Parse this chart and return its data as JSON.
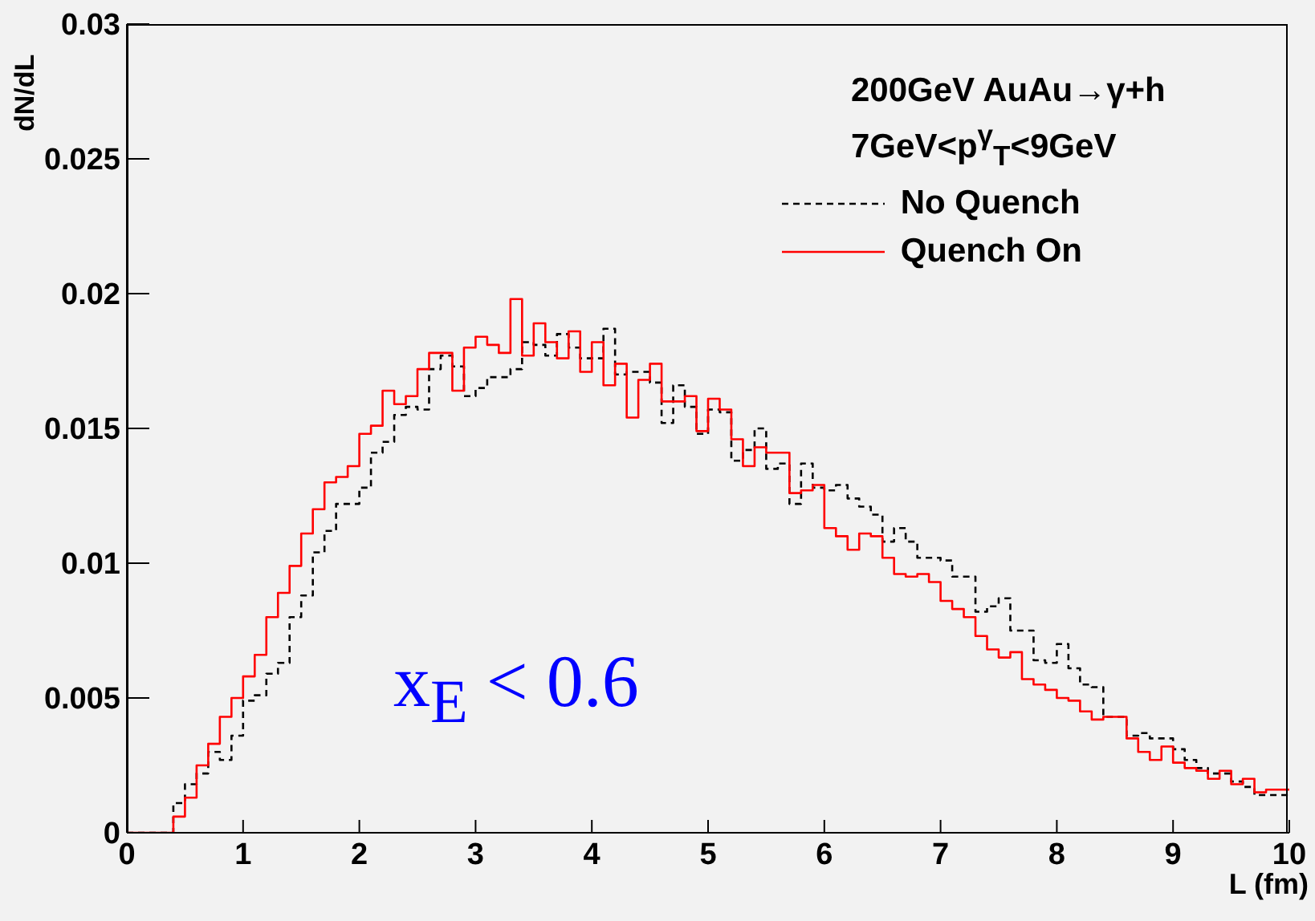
{
  "chart_data": {
    "type": "histogram",
    "xlabel": "L (fm)",
    "ylabel": "dN/dL",
    "annotations": [
      "200GeV AuAu→γ+h",
      "7GeV<p$^{γ}$$_{T}$<9GeV",
      "x$_{E}$ < 0.6"
    ],
    "bins": [
      0,
      0.1,
      0.2,
      0.3,
      0.4,
      0.5,
      0.6,
      0.7,
      0.8,
      0.9,
      1,
      1.1,
      1.2,
      1.3,
      1.4,
      1.5,
      1.6,
      1.7,
      1.8,
      1.9,
      2,
      2.1,
      2.2,
      2.3,
      2.4,
      2.5,
      2.6,
      2.7,
      2.8,
      2.9,
      3,
      3.1,
      3.2,
      3.3,
      3.4,
      3.5,
      3.6,
      3.7,
      3.8,
      3.9,
      4,
      4.1,
      4.2,
      4.3,
      4.4,
      4.5,
      4.6,
      4.7,
      4.8,
      4.9,
      5,
      5.1,
      5.2,
      5.3,
      5.4,
      5.5,
      5.6,
      5.7,
      5.8,
      5.9,
      6,
      6.1,
      6.2,
      6.3,
      6.4,
      6.5,
      6.6,
      6.7,
      6.8,
      6.9,
      7,
      7.1,
      7.2,
      7.3,
      7.4,
      7.5,
      7.6,
      7.7,
      7.8,
      7.9,
      8,
      8.1,
      8.2,
      8.3,
      8.4,
      8.5,
      8.6,
      8.7,
      8.8,
      8.9,
      9,
      9.1,
      9.2,
      9.3,
      9.4,
      9.5,
      9.6,
      9.7,
      9.8,
      9.9,
      10
    ],
    "series": [
      {
        "name": "No Quench",
        "color": "#000000",
        "line_style": "dashed",
        "values": [
          0,
          0,
          0,
          0,
          0.0011,
          0.0018,
          0.0022,
          0.003,
          0.0027,
          0.0036,
          0.0049,
          0.0051,
          0.0059,
          0.0063,
          0.008,
          0.0088,
          0.0104,
          0.0112,
          0.0122,
          0.0122,
          0.0128,
          0.0141,
          0.0145,
          0.0155,
          0.0158,
          0.0157,
          0.0172,
          0.0177,
          0.0173,
          0.0162,
          0.0165,
          0.0169,
          0.0169,
          0.0172,
          0.0182,
          0.0181,
          0.0177,
          0.0185,
          0.018,
          0.0176,
          0.0176,
          0.0187,
          0.017,
          0.0171,
          0.0171,
          0.0167,
          0.0152,
          0.0166,
          0.0158,
          0.0148,
          0.0157,
          0.0156,
          0.0138,
          0.0142,
          0.015,
          0.0135,
          0.0137,
          0.0122,
          0.0137,
          0.0128,
          0.0127,
          0.0129,
          0.0124,
          0.0121,
          0.0118,
          0.0108,
          0.0113,
          0.0108,
          0.0102,
          0.0102,
          0.0101,
          0.0095,
          0.0095,
          0.0082,
          0.0084,
          0.0087,
          0.0075,
          0.0075,
          0.0064,
          0.0063,
          0.007,
          0.0061,
          0.0055,
          0.0054,
          0.0043,
          0.0043,
          0.0036,
          0.0037,
          0.0035,
          0.0035,
          0.0031,
          0.0027,
          0.0024,
          0.0022,
          0.0022,
          0.0019,
          0.0017,
          0.0014,
          0.0014,
          0.0014
        ]
      },
      {
        "name": "Quench On",
        "color": "#ff0000",
        "line_style": "solid",
        "values": [
          0,
          0,
          0,
          0,
          0.0006,
          0.0013,
          0.0025,
          0.0033,
          0.0043,
          0.005,
          0.0058,
          0.0066,
          0.008,
          0.0089,
          0.0099,
          0.0111,
          0.012,
          0.013,
          0.0132,
          0.0136,
          0.0148,
          0.0151,
          0.0164,
          0.0159,
          0.0162,
          0.0172,
          0.0178,
          0.0178,
          0.0164,
          0.018,
          0.0184,
          0.0181,
          0.0178,
          0.0198,
          0.0177,
          0.0189,
          0.0182,
          0.0176,
          0.0186,
          0.0171,
          0.0182,
          0.0166,
          0.0174,
          0.0154,
          0.0168,
          0.0174,
          0.016,
          0.016,
          0.0162,
          0.0149,
          0.0161,
          0.0157,
          0.0146,
          0.0136,
          0.0143,
          0.0141,
          0.0141,
          0.0126,
          0.0127,
          0.0129,
          0.0113,
          0.011,
          0.0105,
          0.0111,
          0.011,
          0.0102,
          0.0096,
          0.0095,
          0.0096,
          0.0093,
          0.0086,
          0.0083,
          0.008,
          0.0073,
          0.0068,
          0.0065,
          0.0067,
          0.0057,
          0.0055,
          0.0053,
          0.005,
          0.0049,
          0.0045,
          0.0042,
          0.0043,
          0.0043,
          0.0035,
          0.003,
          0.0027,
          0.0032,
          0.0026,
          0.0024,
          0.0023,
          0.002,
          0.0023,
          0.0018,
          0.002,
          0.0015,
          0.0016,
          0.0016
        ]
      }
    ],
    "xlim": [
      0,
      10
    ],
    "xticks": [
      0,
      1,
      2,
      3,
      4,
      5,
      6,
      7,
      8,
      9,
      10
    ],
    "ylim": [
      0,
      0.03
    ],
    "yticks": [
      0,
      0.005,
      0.01,
      0.015,
      0.02,
      0.025,
      0.03
    ],
    "grid": false,
    "legend": "top right"
  }
}
